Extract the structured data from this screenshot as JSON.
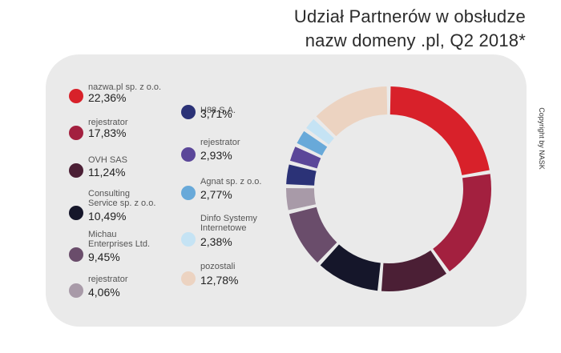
{
  "header": {
    "title_line1": "Udział Partnerów w obsłudze",
    "title_line2": "nazw domeny .pl, Q2 2018*"
  },
  "copyright": "Copyright by NASK",
  "chart_data": {
    "type": "pie",
    "title": "Udział Partnerów w obsłudze nazw domeny .pl, Q2 2018*",
    "unit": "%",
    "categories": [
      "nazwa.pl sp. z o.o.",
      "rejestrator",
      "OVH SAS",
      "Consulting Service sp. z o.o.",
      "Michau Enterprises Ltd.",
      "rejestrator",
      "H88 S.A.",
      "rejestrator",
      "Agnat sp. z o.o.",
      "Dinfo Systemy Internetowe",
      "pozostali"
    ],
    "values": [
      22.36,
      17.83,
      11.24,
      10.49,
      9.45,
      4.06,
      3.71,
      2.93,
      2.77,
      2.38,
      12.78
    ],
    "value_labels": [
      "22,36%",
      "17,83%",
      "11,24%",
      "10,49%",
      "9,45%",
      "4,06%",
      "3,71%",
      "2,93%",
      "2,77%",
      "2,38%",
      "12,78%"
    ],
    "legend_names": [
      "nazwa.pl sp. z o.o.",
      "rejestrator",
      "OVH SAS",
      "Consulting\nService sp. z o.o.",
      "Michau\nEnterprises Ltd.",
      "rejestrator",
      "H88 S.A.",
      "rejestrator",
      "Agnat sp. z o.o.",
      "Dinfo Systemy\nInternetowe",
      "pozostali"
    ],
    "colors": [
      "#d8212a",
      "#a3203f",
      "#4b1f35",
      "#15162a",
      "#6a4d6b",
      "#a89aa8",
      "#2b3277",
      "#5b4799",
      "#68a9d9",
      "#c5e3f4",
      "#ecd3c1"
    ],
    "legend_placement": "left"
  }
}
